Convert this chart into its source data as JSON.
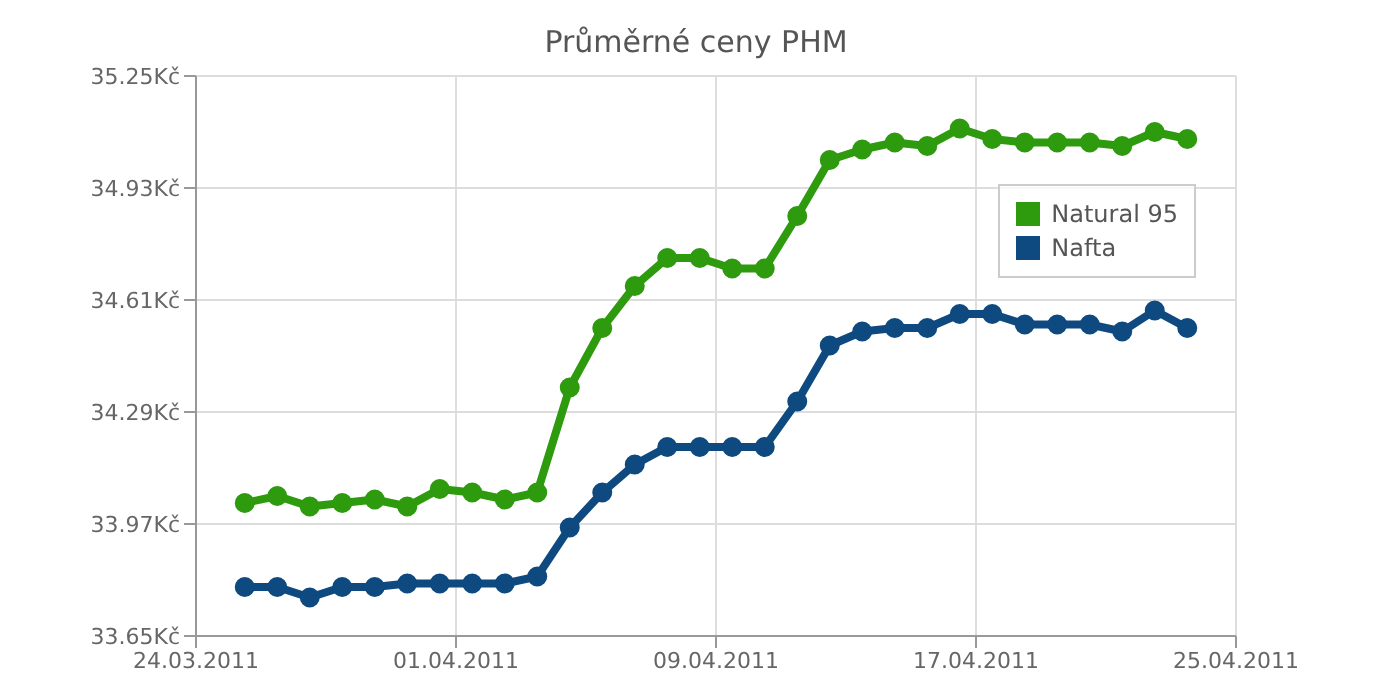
{
  "chart_data": {
    "type": "line",
    "title": "Průměrné ceny PHM",
    "x": [
      "2011-03-25T12:00",
      "2011-03-26T12:00",
      "2011-03-27T12:00",
      "2011-03-28T12:00",
      "2011-03-29T12:00",
      "2011-03-30T12:00",
      "2011-03-31T12:00",
      "2011-04-01T12:00",
      "2011-04-02T12:00",
      "2011-04-03T12:00",
      "2011-04-04T12:00",
      "2011-04-05T12:00",
      "2011-04-06T12:00",
      "2011-04-07T12:00",
      "2011-04-08T12:00",
      "2011-04-09T12:00",
      "2011-04-10T12:00",
      "2011-04-11T12:00",
      "2011-04-12T12:00",
      "2011-04-13T12:00",
      "2011-04-14T12:00",
      "2011-04-15T12:00",
      "2011-04-16T12:00",
      "2011-04-17T12:00",
      "2011-04-18T12:00",
      "2011-04-19T12:00",
      "2011-04-20T12:00",
      "2011-04-21T12:00",
      "2011-04-22T12:00",
      "2011-04-23T12:00"
    ],
    "series": [
      {
        "name": "Natural 95",
        "color": "#2e9a0e",
        "values": [
          34.03,
          34.05,
          34.02,
          34.03,
          34.04,
          34.02,
          34.07,
          34.06,
          34.04,
          34.06,
          34.36,
          34.53,
          34.65,
          34.73,
          34.73,
          34.7,
          34.7,
          34.85,
          35.01,
          35.04,
          35.06,
          35.05,
          35.1,
          35.07,
          35.06,
          35.06,
          35.06,
          35.05,
          35.09,
          35.07
        ]
      },
      {
        "name": "Nafta",
        "color": "#0e4a80",
        "values": [
          33.79,
          33.79,
          33.76,
          33.79,
          33.79,
          33.8,
          33.8,
          33.8,
          33.8,
          33.82,
          33.96,
          34.06,
          34.14,
          34.19,
          34.19,
          34.19,
          34.19,
          34.32,
          34.48,
          34.52,
          34.53,
          34.53,
          34.57,
          34.57,
          34.54,
          34.54,
          34.54,
          34.52,
          34.58,
          34.53
        ]
      }
    ],
    "xlim": [
      "2011-03-24",
      "2011-04-25"
    ],
    "xticks": [
      {
        "value": "2011-03-24",
        "label": "24.03.2011"
      },
      {
        "value": "2011-04-01",
        "label": "01.04.2011"
      },
      {
        "value": "2011-04-09",
        "label": "09.04.2011"
      },
      {
        "value": "2011-04-17",
        "label": "17.04.2011"
      },
      {
        "value": "2011-04-25",
        "label": "25.04.2011"
      }
    ],
    "ylim": [
      33.65,
      35.25
    ],
    "yticks": [
      {
        "value": 33.65,
        "label": "33.65Kč"
      },
      {
        "value": 33.97,
        "label": "33.97Kč"
      },
      {
        "value": 34.29,
        "label": "34.29Kč"
      },
      {
        "value": 34.61,
        "label": "34.61Kč"
      },
      {
        "value": 34.93,
        "label": "34.93Kč"
      },
      {
        "value": 35.25,
        "label": "35.25Kč"
      }
    ],
    "grid": true,
    "legend": "top right",
    "marker": "circle",
    "line_style": "solid"
  }
}
